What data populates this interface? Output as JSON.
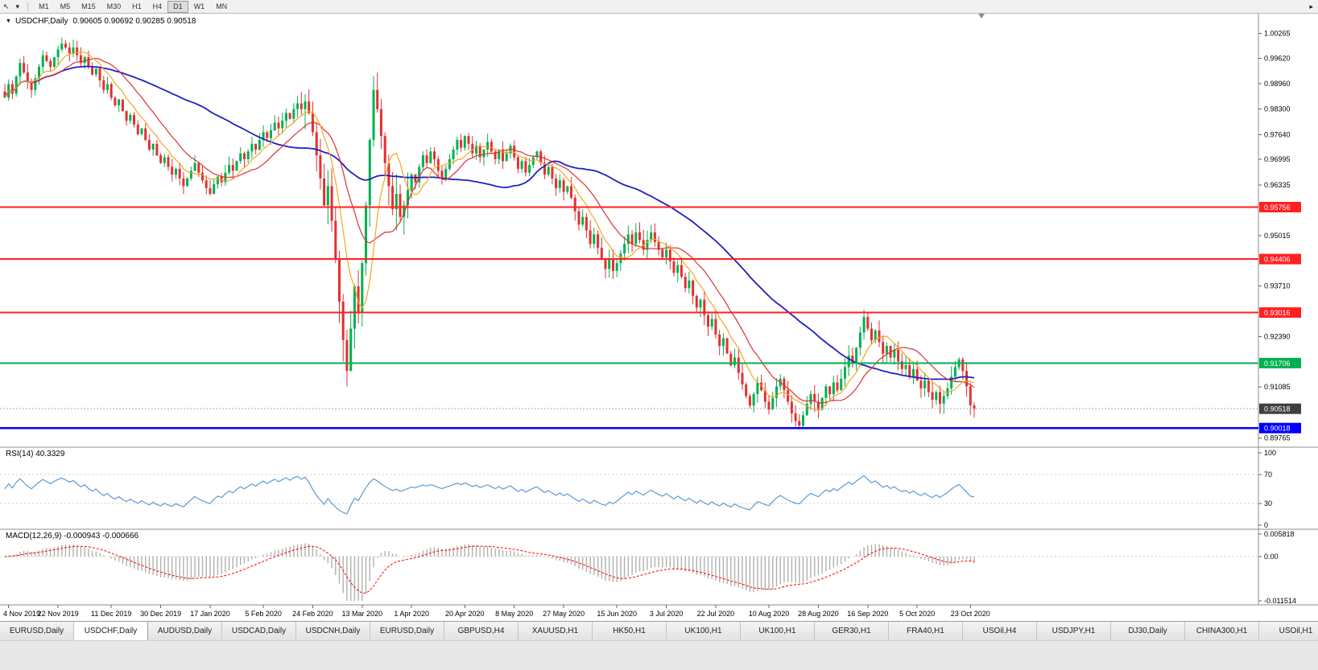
{
  "icons": {
    "collapse": "▼",
    "cursor": "↖",
    "dropdown": "▾",
    "overflow": "▸"
  },
  "toolbar": {
    "timeframes": [
      "M1",
      "M5",
      "M15",
      "M30",
      "H1",
      "H4",
      "D1",
      "W1",
      "MN"
    ],
    "active_timeframe": "D1"
  },
  "chart": {
    "symbol": "USDCHF,Daily",
    "ohlc": "0.90605 0.90692 0.90285 0.90518"
  },
  "indicators": {
    "rsi": "RSI(14) 40.3329",
    "macd": "MACD(12,26,9) -0.000943 -0.000666"
  },
  "chart_data": {
    "type": "candlestick",
    "symbol": "USDCHF",
    "timeframe": "Daily",
    "last_candle": {
      "open": 0.90605,
      "high": 0.90692,
      "low": 0.90285,
      "close": 0.90518
    },
    "closes": [
      0.986,
      0.9895,
      0.987,
      0.9915,
      0.995,
      0.9925,
      0.99,
      0.988,
      0.991,
      0.994,
      0.997,
      0.9955,
      0.994,
      0.9965,
      0.9985,
      1.0,
      0.999,
      0.9975,
      0.999,
      0.997,
      0.995,
      0.9965,
      0.994,
      0.992,
      0.9935,
      0.9905,
      0.988,
      0.9895,
      0.986,
      0.984,
      0.9855,
      0.9825,
      0.98,
      0.9815,
      0.979,
      0.9765,
      0.978,
      0.975,
      0.9725,
      0.974,
      0.971,
      0.969,
      0.9705,
      0.968,
      0.966,
      0.9675,
      0.965,
      0.963,
      0.965,
      0.967,
      0.969,
      0.9665,
      0.9645,
      0.9625,
      0.961,
      0.9635,
      0.9655,
      0.964,
      0.9665,
      0.9685,
      0.967,
      0.9695,
      0.9715,
      0.97,
      0.972,
      0.974,
      0.9725,
      0.975,
      0.977,
      0.9755,
      0.9775,
      0.9795,
      0.978,
      0.98,
      0.982,
      0.9805,
      0.983,
      0.9845,
      0.983,
      0.985,
      0.982,
      0.977,
      0.971,
      0.965,
      0.958,
      0.963,
      0.954,
      0.944,
      0.933,
      0.923,
      0.915,
      0.926,
      0.937,
      0.93,
      0.943,
      0.958,
      0.975,
      0.988,
      0.983,
      0.976,
      0.969,
      0.963,
      0.957,
      0.961,
      0.955,
      0.958,
      0.962,
      0.966,
      0.964,
      0.968,
      0.971,
      0.969,
      0.972,
      0.97,
      0.967,
      0.965,
      0.9675,
      0.97,
      0.9725,
      0.975,
      0.973,
      0.976,
      0.974,
      0.9715,
      0.9735,
      0.9705,
      0.9725,
      0.9745,
      0.972,
      0.97,
      0.9725,
      0.9695,
      0.9715,
      0.9735,
      0.9705,
      0.9675,
      0.9695,
      0.9665,
      0.9685,
      0.9705,
      0.972,
      0.969,
      0.966,
      0.968,
      0.965,
      0.9625,
      0.9645,
      0.9615,
      0.963,
      0.96,
      0.9565,
      0.953,
      0.955,
      0.9515,
      0.948,
      0.9505,
      0.947,
      0.944,
      0.9415,
      0.944,
      0.941,
      0.943,
      0.9455,
      0.948,
      0.9505,
      0.948,
      0.951,
      0.949,
      0.9465,
      0.949,
      0.951,
      0.9485,
      0.9465,
      0.9445,
      0.9465,
      0.9435,
      0.9405,
      0.9425,
      0.9395,
      0.9365,
      0.9385,
      0.9345,
      0.9315,
      0.9335,
      0.9295,
      0.9265,
      0.9285,
      0.9245,
      0.9215,
      0.9235,
      0.9195,
      0.9165,
      0.9185,
      0.9145,
      0.9115,
      0.9085,
      0.906,
      0.909,
      0.912,
      0.91,
      0.907,
      0.905,
      0.908,
      0.911,
      0.913,
      0.91,
      0.907,
      0.904,
      0.902,
      0.9008,
      0.9035,
      0.9065,
      0.909,
      0.907,
      0.905,
      0.908,
      0.911,
      0.909,
      0.912,
      0.91,
      0.913,
      0.916,
      0.919,
      0.917,
      0.921,
      0.925,
      0.929,
      0.926,
      0.923,
      0.9255,
      0.9225,
      0.9195,
      0.9215,
      0.9185,
      0.9205,
      0.9175,
      0.9155,
      0.9165,
      0.9135,
      0.9155,
      0.9125,
      0.9105,
      0.9125,
      0.9095,
      0.9075,
      0.9095,
      0.9065,
      0.9085,
      0.9105,
      0.9135,
      0.916,
      0.918,
      0.915,
      0.911,
      0.9061,
      0.90518
    ],
    "date_labels": [
      "4 Nov 2019",
      "22 Nov 2019",
      "11 Dec 2019",
      "30 Dec 2019",
      "17 Jan 2020",
      "5 Feb 2020",
      "24 Feb 2020",
      "13 Mar 2020",
      "1 Apr 2020",
      "20 Apr 2020",
      "8 May 2020",
      "27 May 2020",
      "15 Jun 2020",
      "3 Jul 2020",
      "22 Jul 2020",
      "10 Aug 2020",
      "28 Aug 2020",
      "16 Sep 2020",
      "5 Oct 2020",
      "23 Oct 2020"
    ],
    "price_axis_labels": [
      "1.00265",
      "0.99620",
      "0.98960",
      "0.98300",
      "0.97640",
      "0.96995",
      "0.96335",
      "0.95015",
      "0.93710",
      "0.92390",
      "0.91085",
      "0.89765"
    ],
    "hlines": [
      {
        "price": 0.95756,
        "label": "0.95756",
        "color": "#ff2020",
        "width": 1.8
      },
      {
        "price": 0.94406,
        "label": "0.94406",
        "color": "#ff2020",
        "width": 1.8
      },
      {
        "price": 0.93016,
        "label": "0.93016",
        "color": "#ff2020",
        "width": 1.8
      },
      {
        "price": 0.91706,
        "label": "0.91706",
        "color": "#00b050",
        "width": 2.0
      },
      {
        "price": 0.90018,
        "label": "0.90018",
        "color": "#0000ff",
        "width": 2.8
      }
    ],
    "current_price": {
      "value": 0.90518,
      "label": "0.90518"
    },
    "rsi": {
      "period": 14,
      "last_value": 40.3329,
      "levels": [
        70,
        30
      ],
      "axis_labels": [
        "100",
        "70",
        "30",
        "0"
      ]
    },
    "macd": {
      "fast": 12,
      "slow": 26,
      "signal_period": 9,
      "macd_value": -0.000943,
      "signal_value": -0.000666,
      "range": [
        -0.011514,
        0.005818
      ],
      "axis_labels": [
        "0.005818",
        "0.00",
        "-0.011514"
      ]
    },
    "ma_periods": {
      "fast": 8,
      "mid": 16,
      "slow": 50
    },
    "colors": {
      "up": "#00b050",
      "down": "#e33030",
      "ma_fast": "#f5a623",
      "ma_mid": "#e03030",
      "ma_slow": "#2020c0",
      "rsi": "#5b9bd5",
      "macd_hist": "#b0b0b0",
      "macd_signal": "#ff0000",
      "price_badge": "#3f3f3f"
    }
  },
  "tabs": {
    "active_index": 1,
    "items": [
      "EURUSD,Daily",
      "USDCHF,Daily",
      "AUDUSD,Daily",
      "USDCAD,Daily",
      "USDCNH,Daily",
      "EURUSD,Daily",
      "GBPUSD,H4",
      "XAUUSD,H1",
      "HK50,H1",
      "UK100,H1",
      "UK100,H1",
      "GER30,H1",
      "FRA40,H1",
      "USOil,H4",
      "USDJPY,H1",
      "DJ30,Daily",
      "CHINA300,H1",
      "USOil,H1"
    ]
  }
}
